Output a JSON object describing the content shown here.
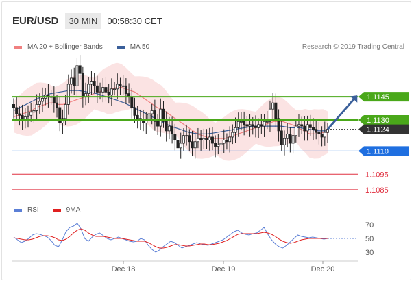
{
  "header": {
    "symbol": "EUR/USD",
    "timeframe": "30 MIN",
    "clock": "00:58:30 CET"
  },
  "legend": {
    "ma_bb_label": "MA 20 + Bollinger Bands",
    "ma_bb_color": "#f08080",
    "ma50_label": "MA 50",
    "ma50_color": "#3a5f9a"
  },
  "research": "Research © 2019 Trading Central",
  "rsi_legend": {
    "rsi_label": "RSI",
    "rsi_color": "#5b7fd6",
    "ma9_label": "9MA",
    "ma9_color": "#e02020"
  },
  "chart_data": [
    {
      "type": "candlestick",
      "title": "",
      "x_labels": [
        "Dec 18",
        "Dec 19",
        "Dec 20"
      ],
      "ylim": [
        1.1077,
        1.1172
      ],
      "levels": [
        {
          "value": 1.1145,
          "label": "1.1145",
          "kind": "resistance",
          "color": "#4aa81a"
        },
        {
          "value": 1.113,
          "label": "1.1130",
          "kind": "resistance",
          "color": "#4aa81a"
        },
        {
          "value": 1.1124,
          "label": "1.1124",
          "kind": "last-price",
          "color": "#333333"
        },
        {
          "value": 1.111,
          "label": "1.1110",
          "kind": "pivot",
          "color": "#1f6fe0"
        },
        {
          "value": 1.1095,
          "label": "1.1095",
          "kind": "support",
          "color": "#e03040"
        },
        {
          "value": 1.1085,
          "label": "1.1085",
          "kind": "support",
          "color": "#e03040"
        }
      ],
      "forecast_arrow": {
        "from": 1.1124,
        "to": 1.1145,
        "color": "#3a5f9a"
      },
      "series": [
        {
          "name": "Price",
          "kind": "candles",
          "close": [
            1.1138,
            1.1134,
            1.1133,
            1.113,
            1.1132,
            1.1133,
            1.1135,
            1.1136,
            1.114,
            1.1142,
            1.1144,
            1.1146,
            1.1145,
            1.1145,
            1.1141,
            1.1138,
            1.1128,
            1.1131,
            1.114,
            1.1153,
            1.1157,
            1.1152,
            1.1165,
            1.116,
            1.1145,
            1.1147,
            1.1153,
            1.1155,
            1.1152,
            1.1148,
            1.1148,
            1.1151,
            1.1148,
            1.1146,
            1.115,
            1.115,
            1.1153,
            1.1152,
            1.1152,
            1.1147,
            1.1145,
            1.1138,
            1.1133,
            1.1131,
            1.113,
            1.1128,
            1.113,
            1.1134,
            1.1136,
            1.1129,
            1.1126,
            1.1137,
            1.1129,
            1.1123,
            1.1126,
            1.1121,
            1.1117,
            1.1112,
            1.1115,
            1.112,
            1.112,
            1.1116,
            1.1112,
            1.1116,
            1.1118,
            1.1117,
            1.1118,
            1.1117,
            1.1119,
            1.1115,
            1.1113,
            1.1114,
            1.1115,
            1.1117,
            1.1116,
            1.1119,
            1.1122,
            1.1125,
            1.1129,
            1.1129,
            1.1127,
            1.1126,
            1.1127,
            1.1126,
            1.1125,
            1.1127,
            1.1126,
            1.1129,
            1.1129,
            1.1137,
            1.1141,
            1.1131,
            1.1123,
            1.1114,
            1.1118,
            1.1121,
            1.1115,
            1.112,
            1.1126,
            1.1127,
            1.1126,
            1.1123,
            1.1127,
            1.1125,
            1.1124,
            1.1122,
            1.1121,
            1.1119,
            1.1122,
            1.1124
          ]
        },
        {
          "name": "MA 20",
          "kind": "line",
          "values": [
            1.1132,
            1.1133,
            1.1134,
            1.1135,
            1.1136,
            1.1138,
            1.1139,
            1.114,
            1.1141,
            1.1141,
            1.114,
            1.114,
            1.1141,
            1.1142,
            1.1143,
            1.1144,
            1.1145,
            1.1146,
            1.1147,
            1.1148,
            1.1149,
            1.1149,
            1.115,
            1.1151,
            1.1151,
            1.115,
            1.1149,
            1.1148,
            1.1146,
            1.1144,
            1.1142,
            1.114,
            1.1138,
            1.1137,
            1.1135,
            1.1133,
            1.1131,
            1.1129,
            1.1127,
            1.1125,
            1.1123,
            1.1121,
            1.112,
            1.1119,
            1.1118,
            1.1118,
            1.1118,
            1.1118,
            1.1119,
            1.112,
            1.1121,
            1.1122,
            1.1123,
            1.1124,
            1.1125,
            1.1126,
            1.1127,
            1.1128,
            1.1129,
            1.1129,
            1.1129,
            1.1128,
            1.1127,
            1.1126,
            1.1124,
            1.1123,
            1.1121,
            1.1121,
            1.1121,
            1.1122,
            1.1122
          ]
        },
        {
          "name": "MA 50",
          "kind": "line",
          "values": [
            1.1136,
            1.1139,
            1.1142,
            1.1145,
            1.1147,
            1.1148,
            1.1149,
            1.1149,
            1.1148,
            1.1147,
            1.1145,
            1.1143,
            1.1141,
            1.1138,
            1.1135,
            1.1132,
            1.1129,
            1.1126,
            1.1124,
            1.1122,
            1.1121,
            1.1121,
            1.1122,
            1.1123,
            1.1124,
            1.1125,
            1.1126,
            1.1126,
            1.1126,
            1.1126,
            1.1125,
            1.1125,
            1.1124,
            1.1123,
            1.1123
          ]
        }
      ]
    },
    {
      "type": "line",
      "title": "RSI",
      "yticks": [
        30,
        50,
        70
      ],
      "ylim": [
        20,
        80
      ],
      "series": [
        {
          "name": "RSI",
          "values": [
            52,
            48,
            44,
            46,
            50,
            55,
            57,
            56,
            54,
            52,
            47,
            40,
            38,
            48,
            60,
            66,
            68,
            72,
            64,
            50,
            46,
            52,
            56,
            58,
            54,
            50,
            48,
            50,
            52,
            50,
            48,
            46,
            45,
            46,
            50,
            48,
            40,
            34,
            30,
            33,
            38,
            42,
            46,
            44,
            40,
            36,
            38,
            40,
            42,
            44,
            42,
            41,
            40,
            42,
            44,
            46,
            48,
            52,
            56,
            60,
            62,
            58,
            56,
            55,
            57,
            58,
            62,
            66,
            56,
            48,
            42,
            38,
            36,
            40,
            45,
            50,
            55,
            53,
            52,
            51,
            52,
            51,
            50,
            49,
            50
          ]
        },
        {
          "name": "9MA",
          "values": [
            51,
            50,
            49,
            48,
            48,
            49,
            51,
            53,
            54,
            54,
            53,
            51,
            48,
            47,
            49,
            53,
            58,
            62,
            64,
            62,
            58,
            55,
            53,
            53,
            53,
            52,
            51,
            50,
            50,
            50,
            49,
            48,
            47,
            46,
            46,
            46,
            44,
            41,
            38,
            36,
            36,
            37,
            39,
            41,
            41,
            40,
            39,
            39,
            40,
            41,
            42,
            42,
            41,
            41,
            42,
            43,
            45,
            47,
            50,
            53,
            56,
            57,
            57,
            57,
            57,
            57,
            58,
            59,
            58,
            56,
            53,
            49,
            46,
            44,
            43,
            44,
            46,
            48,
            49,
            50,
            50,
            50,
            50,
            50,
            50
          ]
        }
      ],
      "x_labels": [
        "Dec 18",
        "Dec 19",
        "Dec 20"
      ]
    }
  ]
}
